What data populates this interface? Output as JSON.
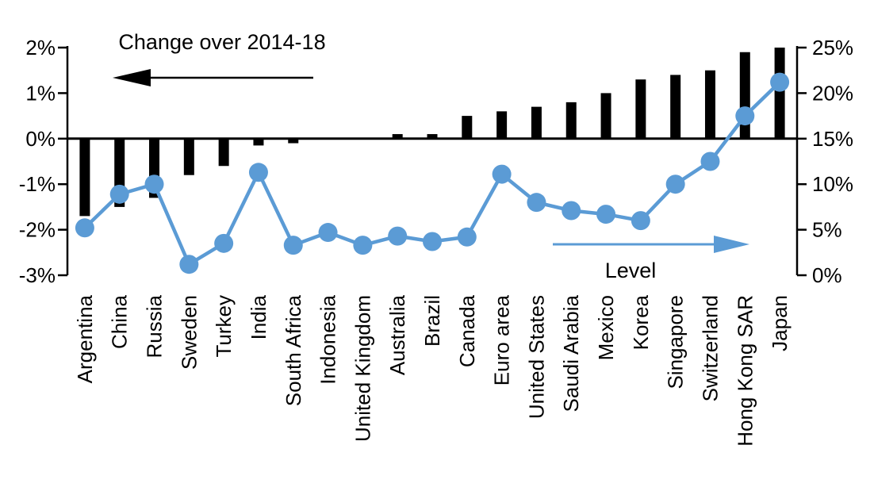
{
  "chart_data": {
    "type": "bar",
    "subtype": "combo-bar-line-dual-axis",
    "title": "",
    "categories": [
      "Argentina",
      "China",
      "Russia",
      "Sweden",
      "Turkey",
      "India",
      "South Africa",
      "Indonesia",
      "United Kingdom",
      "Australia",
      "Brazil",
      "Canada",
      "Euro area",
      "United States",
      "Saudi Arabia",
      "Mexico",
      "Korea",
      "Singapore",
      "Switzerland",
      "Hong Kong SAR",
      "Japan"
    ],
    "series": [
      {
        "name": "Change over 2014-18",
        "type": "bar",
        "axis": "left",
        "color": "#000000",
        "values": [
          -1.7,
          -1.5,
          -1.3,
          -0.8,
          -0.6,
          -0.15,
          -0.1,
          0,
          0,
          0.1,
          0.1,
          0.5,
          0.6,
          0.7,
          0.8,
          1.0,
          1.3,
          1.4,
          1.5,
          1.9,
          2.0
        ]
      },
      {
        "name": "Level",
        "type": "line",
        "axis": "right",
        "color": "#5B9BD5",
        "values": [
          5.2,
          8.9,
          10.0,
          1.2,
          3.5,
          11.3,
          3.3,
          4.7,
          3.3,
          4.3,
          3.7,
          4.2,
          11.1,
          8.0,
          7.1,
          6.7,
          6.0,
          10.0,
          12.5,
          17.5,
          21.2
        ]
      }
    ],
    "left_axis": {
      "min": -3,
      "max": 2,
      "tick_values": [
        2,
        1,
        0,
        -1,
        -2,
        -3
      ],
      "tick_labels": [
        "2%",
        "1%",
        "0%",
        "-1%",
        "-2%",
        "-3%"
      ]
    },
    "right_axis": {
      "min": 0,
      "max": 25,
      "tick_values": [
        25,
        20,
        15,
        10,
        5,
        0
      ],
      "tick_labels": [
        "25%",
        "20%",
        "15%",
        "10%",
        "5%",
        "0%"
      ]
    },
    "annotations": {
      "bar_series_label": {
        "text": "Change over 2014-18",
        "color": "#000000",
        "arrow_direction": "left"
      },
      "line_series_label": {
        "text": "Level",
        "color": "#000000",
        "arrow_color": "#5B9BD5",
        "arrow_direction": "right"
      }
    },
    "grid": false,
    "legend_position": "in-plot-annotations"
  }
}
